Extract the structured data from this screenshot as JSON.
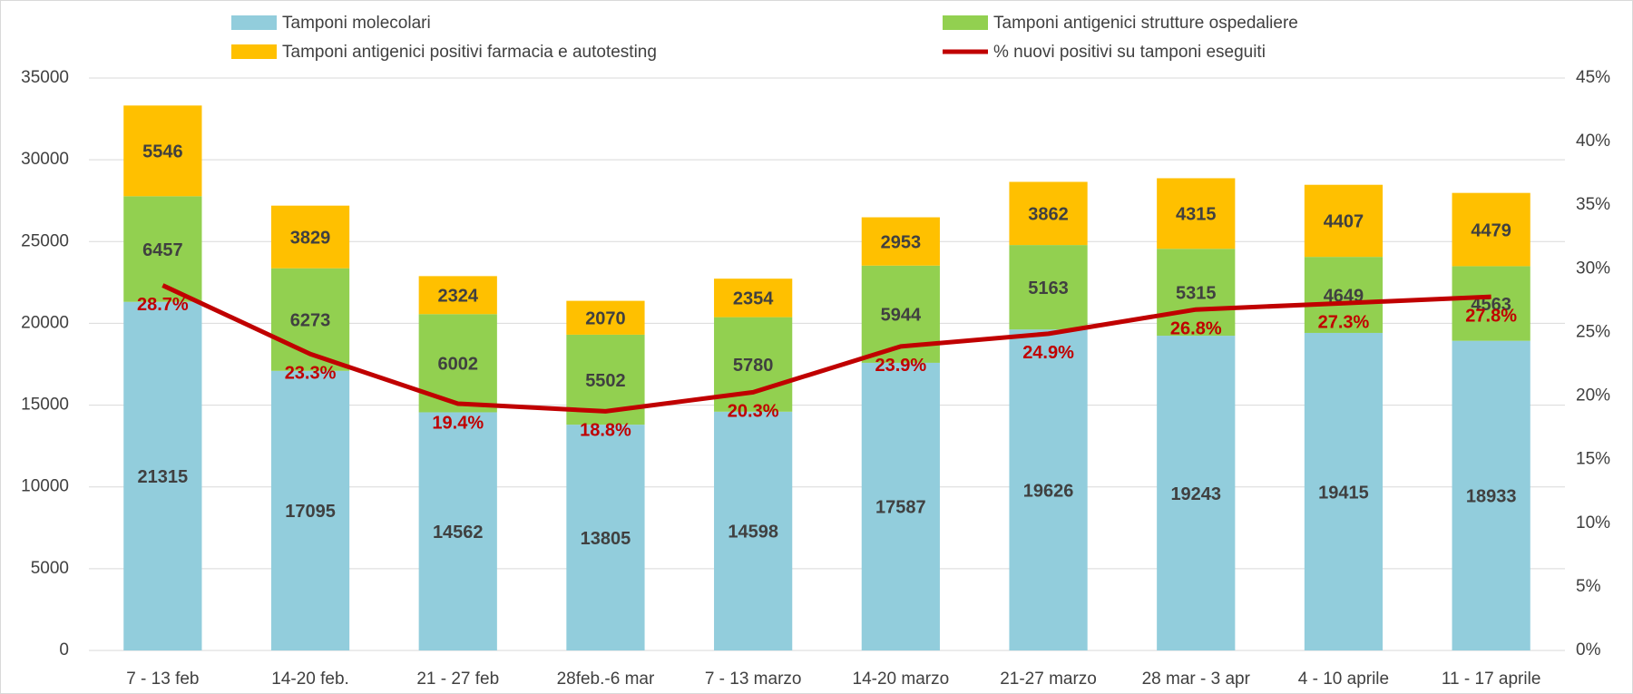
{
  "chart_data": {
    "type": "bar",
    "categories": [
      "7 - 13 feb",
      "14-20 feb.",
      "21 - 27 feb",
      "28feb.-6 mar",
      "7 - 13 marzo",
      "14-20 marzo",
      "21-27 marzo",
      "28 mar - 3 apr",
      "4 - 10 aprile",
      "11 - 17 aprile"
    ],
    "series": [
      {
        "name": "Tamponi molecolari",
        "color": "#92cddc",
        "values": [
          21315,
          17095,
          14562,
          13805,
          14598,
          17587,
          19626,
          19243,
          19415,
          18933
        ]
      },
      {
        "name": "Tamponi antigenici strutture ospedaliere",
        "color": "#92d050",
        "values": [
          6457,
          6273,
          6002,
          5502,
          5780,
          5944,
          5163,
          5315,
          4649,
          4563
        ]
      },
      {
        "name": "Tamponi antigenici positivi farmacia e autotesting",
        "color": "#ffc000",
        "values": [
          5546,
          3829,
          2324,
          2070,
          2354,
          2953,
          3862,
          4315,
          4407,
          4479
        ]
      },
      {
        "name": "% nuovi positivi su tamponi eseguiti",
        "color": "#c00000",
        "type": "line",
        "axis": "y2",
        "values": [
          28.7,
          23.3,
          19.4,
          18.8,
          20.3,
          23.9,
          24.9,
          26.8,
          27.3,
          27.8
        ],
        "value_labels": [
          "28.7%",
          "23.3%",
          "19.4%",
          "18.8%",
          "20.3%",
          "23.9%",
          "24.9%",
          "26.8%",
          "27.3%",
          "27.8%"
        ]
      }
    ],
    "ylim": [
      0,
      35000
    ],
    "yticks": [
      0,
      5000,
      10000,
      15000,
      20000,
      25000,
      30000,
      35000
    ],
    "y2lim": [
      0,
      45
    ],
    "y2ticks": [
      {
        "value": 0,
        "label": "0%"
      },
      {
        "value": 5,
        "label": "5%"
      },
      {
        "value": 10,
        "label": "10%"
      },
      {
        "value": 15,
        "label": "15%"
      },
      {
        "value": 20,
        "label": "20%"
      },
      {
        "value": 25,
        "label": "25%"
      },
      {
        "value": 30,
        "label": "30%"
      },
      {
        "value": 35,
        "label": "35%"
      },
      {
        "value": 40,
        "label": "40%"
      },
      {
        "value": 45,
        "label": "45%"
      }
    ],
    "grid": true
  }
}
